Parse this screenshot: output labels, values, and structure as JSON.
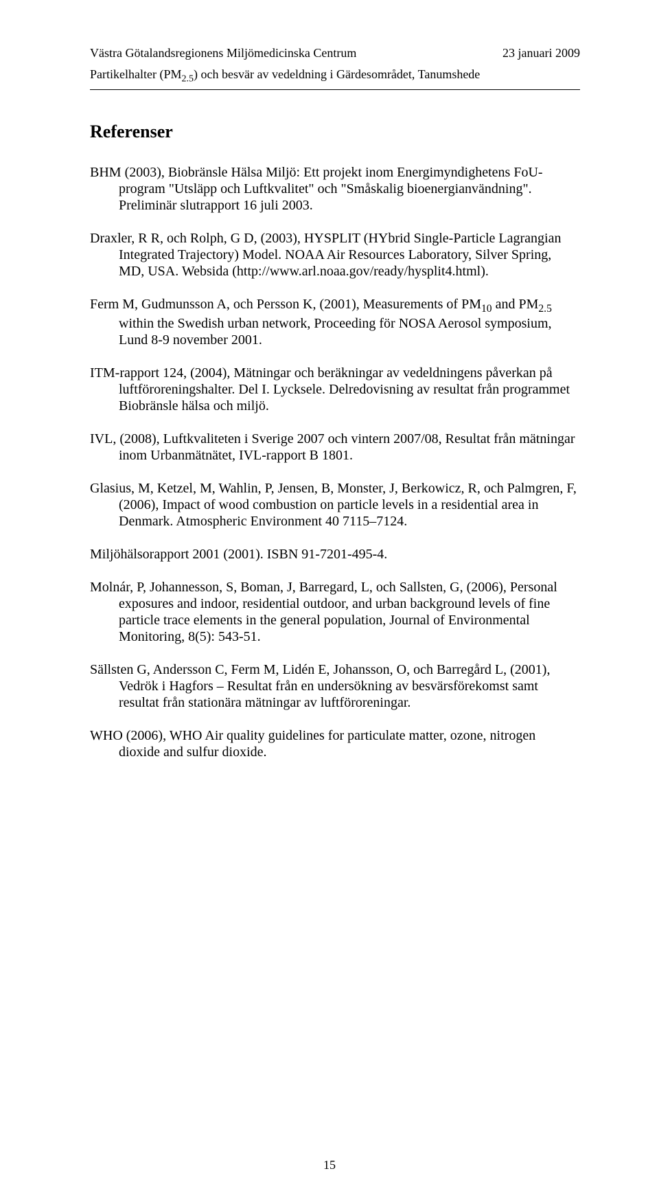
{
  "header": {
    "left": "Västra Götalandsregionens Miljömedicinska Centrum",
    "right": "23 januari 2009",
    "sub_pre": "Partikelhalter (PM",
    "sub_sub": "2.5",
    "sub_post": ") och besvär av vedeldning i Gärdesområdet, Tanumshede"
  },
  "section_title": "Referenser",
  "refs": {
    "r1": "BHM (2003), Biobränsle Hälsa Miljö: Ett projekt inom Energimyndighetens FoU-program \"Utsläpp och Luftkvalitet\" och \"Småskalig bioenergianvändning\". Preliminär slutrapport 16 juli 2003.",
    "r2": "Draxler, R R, och Rolph, G D, (2003), HYSPLIT (HYbrid Single-Particle Lagrangian Integrated Trajectory) Model. NOAA Air Resources Laboratory, Silver Spring, MD, USA. Websida (http://www.arl.noaa.gov/ready/hysplit4.html).",
    "r3_pre": "Ferm M, Gudmunsson A, och Persson K, (2001), Measurements of PM",
    "r3_sub1": "10",
    "r3_mid": " and PM",
    "r3_sub2": "2.5",
    "r3_post": " within the Swedish urban network, Proceeding för NOSA Aerosol symposium, Lund 8-9 november 2001.",
    "r4": "ITM-rapport 124, (2004), Mätningar och beräkningar av vedeldningens påverkan på luftföroreningshalter. Del I. Lycksele. Delredovisning av resultat från programmet Biobränsle hälsa och miljö.",
    "r5": "IVL, (2008), Luftkvaliteten i Sverige 2007 och vintern 2007/08, Resultat från mätningar inom Urbanmätnätet, IVL-rapport B 1801.",
    "r6": "Glasius, M, Ketzel, M, Wahlin, P, Jensen, B, Monster, J, Berkowicz, R, och Palmgren, F, (2006), Impact of wood combustion on particle levels in a residential area in Denmark. Atmospheric Environment 40 7115–7124.",
    "r7": "Miljöhälsorapport 2001 (2001). ISBN 91-7201-495-4.",
    "r8": "Molnár, P, Johannesson, S, Boman, J, Barregard, L, och Sallsten, G, (2006), Personal exposures and indoor, residential outdoor, and urban background levels of fine particle trace elements in the general population, Journal of Environmental Monitoring, 8(5): 543-51.",
    "r9": "Sällsten G, Andersson C, Ferm M, Lidén E, Johansson, O, och Barregård L, (2001), Vedrök i Hagfors – Resultat från en undersökning av besvärsförekomst samt resultat från stationära mätningar av luftföroreningar.",
    "r10": "WHO (2006), WHO Air quality guidelines for particulate matter, ozone, nitrogen dioxide and sulfur dioxide."
  },
  "page_number": "15"
}
